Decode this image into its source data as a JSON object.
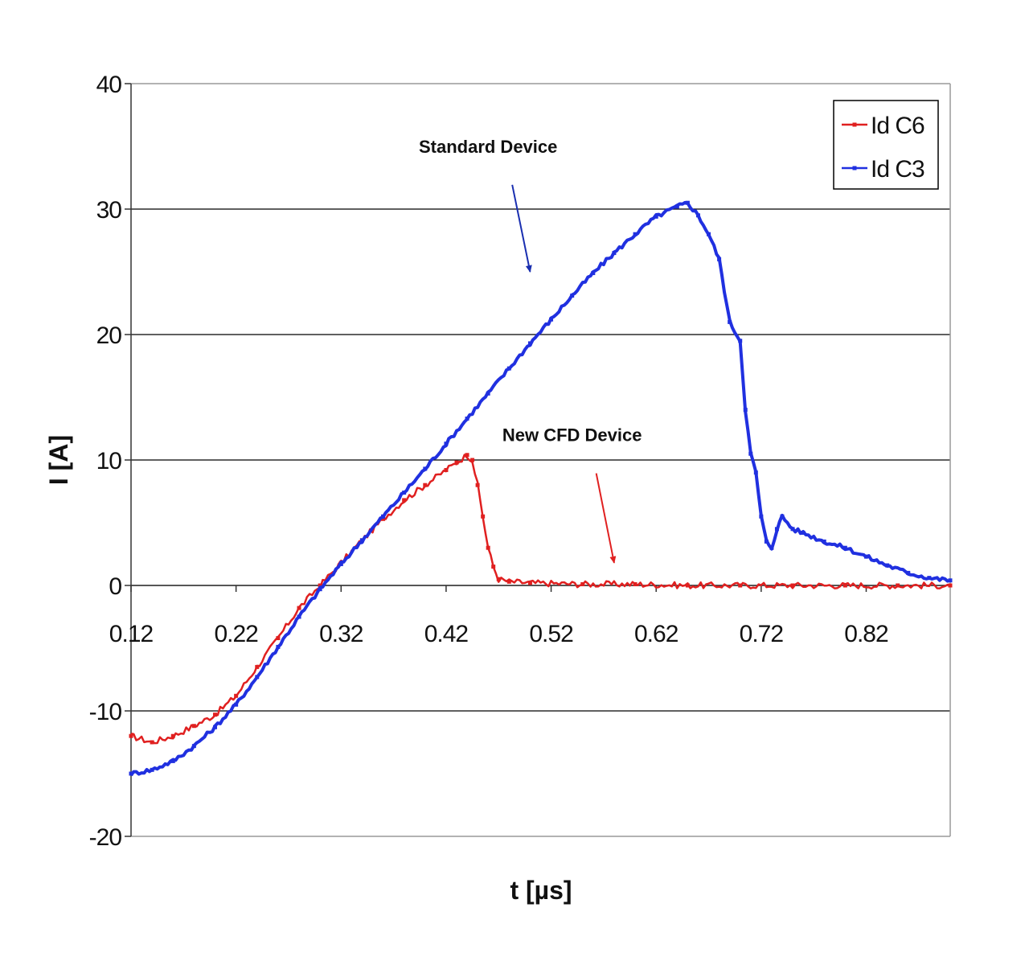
{
  "chart_data": {
    "type": "line",
    "title": "",
    "xlabel": "t [µs]",
    "ylabel": "I [A]",
    "xlim": [
      0.12,
      0.9
    ],
    "ylim": [
      -20,
      40
    ],
    "x_ticks": [
      0.12,
      0.22,
      0.32,
      0.42,
      0.52,
      0.62,
      0.72,
      0.82
    ],
    "x_tick_labels": [
      "0.12",
      "0.22",
      "0.32",
      "0.42",
      "0.52",
      "0.62",
      "0.72",
      "0.82"
    ],
    "y_ticks": [
      -20,
      -10,
      0,
      10,
      20,
      30,
      40
    ],
    "y_tick_labels": [
      "-20",
      "-10",
      "0",
      "10",
      "20",
      "30",
      "40"
    ],
    "grid": "horizontal",
    "legend": {
      "position": "top-right"
    },
    "series": [
      {
        "name": "Id C6",
        "color": "#e02020",
        "x": [
          0.12,
          0.14,
          0.16,
          0.18,
          0.2,
          0.22,
          0.24,
          0.26,
          0.28,
          0.3,
          0.32,
          0.34,
          0.36,
          0.38,
          0.4,
          0.42,
          0.43,
          0.44,
          0.445,
          0.45,
          0.455,
          0.46,
          0.465,
          0.47,
          0.48,
          0.5,
          0.55,
          0.6,
          0.65,
          0.7,
          0.75,
          0.8,
          0.85,
          0.9
        ],
        "values": [
          -12.0,
          -12.5,
          -12.0,
          -11.2,
          -10.3,
          -8.8,
          -6.5,
          -4.2,
          -1.8,
          0.0,
          1.8,
          3.6,
          5.3,
          6.8,
          8.0,
          9.2,
          9.8,
          10.4,
          10.0,
          8.0,
          5.5,
          3.0,
          1.5,
          0.5,
          0.3,
          0.2,
          0.1,
          0.1,
          0.0,
          0.0,
          0.0,
          0.0,
          0.0,
          0.0
        ]
      },
      {
        "name": "Id C3",
        "color": "#2030e0",
        "x": [
          0.12,
          0.14,
          0.16,
          0.18,
          0.2,
          0.22,
          0.24,
          0.26,
          0.28,
          0.3,
          0.32,
          0.34,
          0.36,
          0.38,
          0.4,
          0.42,
          0.44,
          0.46,
          0.48,
          0.5,
          0.52,
          0.54,
          0.56,
          0.58,
          0.6,
          0.62,
          0.64,
          0.65,
          0.66,
          0.67,
          0.68,
          0.69,
          0.7,
          0.705,
          0.71,
          0.715,
          0.72,
          0.725,
          0.73,
          0.735,
          0.74,
          0.75,
          0.76,
          0.78,
          0.8,
          0.82,
          0.84,
          0.86,
          0.88,
          0.9
        ],
        "values": [
          -15.0,
          -14.7,
          -14.0,
          -12.8,
          -11.3,
          -9.5,
          -7.3,
          -4.9,
          -2.5,
          -0.3,
          1.7,
          3.6,
          5.5,
          7.4,
          9.3,
          11.3,
          13.3,
          15.3,
          17.3,
          19.3,
          21.2,
          23.1,
          24.9,
          26.5,
          28.0,
          29.4,
          30.2,
          30.5,
          29.5,
          28.0,
          26.0,
          21.0,
          19.5,
          14.0,
          10.5,
          9.0,
          5.5,
          3.5,
          3.0,
          4.5,
          5.5,
          4.5,
          4.2,
          3.5,
          3.0,
          2.3,
          1.6,
          1.0,
          0.6,
          0.4
        ]
      }
    ],
    "annotations": [
      {
        "text": "Standard Device",
        "x": 0.46,
        "y": 34.5,
        "arrow_to": [
          0.5,
          25.0
        ],
        "color": "#1a2fb0"
      },
      {
        "text": "New CFD Device",
        "x": 0.54,
        "y": 11.5,
        "arrow_to": [
          0.58,
          1.8
        ],
        "color": "#e02020"
      }
    ]
  }
}
